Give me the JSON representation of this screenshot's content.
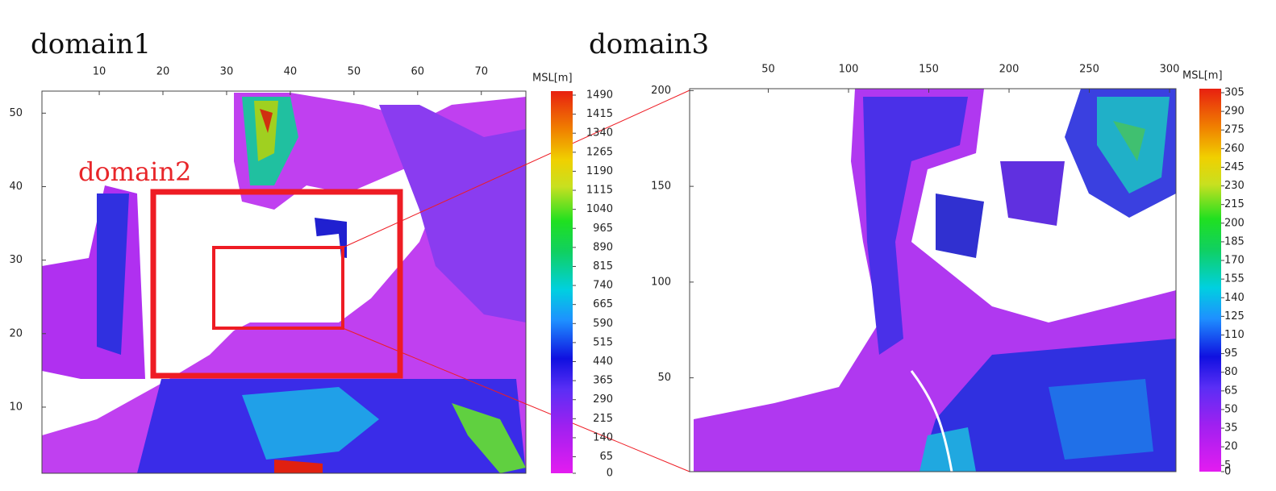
{
  "panels": [
    {
      "title": "domain1",
      "annotation": "domain2",
      "xlim": [
        1,
        77
      ],
      "ylim": [
        1,
        53
      ],
      "xticks": [
        10,
        20,
        30,
        40,
        50,
        60,
        70
      ],
      "yticks": [
        10,
        20,
        30,
        40,
        50
      ],
      "colorbar": {
        "label": "MSL[m]",
        "lim": [
          0,
          1490
        ],
        "ticks": [
          0,
          65,
          140,
          215,
          290,
          365,
          440,
          515,
          590,
          665,
          740,
          815,
          890,
          965,
          1040,
          1115,
          1190,
          1265,
          1340,
          1415,
          1490
        ]
      }
    },
    {
      "title": "domain3",
      "xlim": [
        1,
        304
      ],
      "ylim": [
        1,
        201
      ],
      "xticks": [
        50,
        100,
        150,
        200,
        250,
        300
      ],
      "yticks": [
        50,
        100,
        150,
        200
      ],
      "colorbar": {
        "label": "MSL[m]",
        "lim": [
          0,
          305
        ],
        "ticks": [
          0,
          5,
          20,
          35,
          50,
          65,
          80,
          95,
          110,
          125,
          140,
          155,
          170,
          185,
          200,
          215,
          230,
          245,
          260,
          275,
          290,
          305
        ]
      }
    }
  ]
}
